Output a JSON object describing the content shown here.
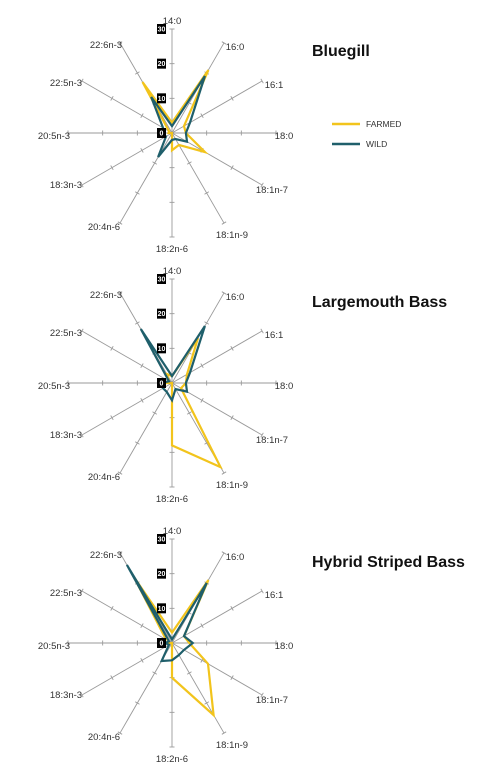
{
  "chart_data": [
    {
      "type": "radar",
      "title": "Bluegill",
      "axes": [
        "14:0",
        "16:0",
        "16:1",
        "18:0",
        "18:1n-7",
        "18:1n-9",
        "18:2n-6",
        "20:4n-6",
        "18:3n-3",
        "20:5n-3",
        "22:5n-3",
        "22:6n-3"
      ],
      "r_ticks": [
        "0",
        "10",
        "20",
        "30"
      ],
      "rlim": [
        0,
        30
      ],
      "series": [
        {
          "name": "FARMED",
          "color": "#f2c41c",
          "values": [
            3,
            21,
            4,
            4,
            11,
            4,
            5,
            0,
            0,
            1,
            1,
            17
          ]
        },
        {
          "name": "WILD",
          "color": "#1f5f6b",
          "values": [
            2,
            19,
            6,
            4,
            5,
            2,
            2,
            8,
            2,
            3,
            3,
            12
          ]
        }
      ]
    },
    {
      "type": "radar",
      "title": "Largemouth Bass",
      "axes": [
        "14:0",
        "16:0",
        "16:1",
        "18:0",
        "18:1n-7",
        "18:1n-9",
        "18:2n-6",
        "20:4n-6",
        "18:3n-3",
        "20:5n-3",
        "22:5n-3",
        "22:6n-3"
      ],
      "r_ticks": [
        "0",
        "10",
        "20",
        "30"
      ],
      "rlim": [
        0,
        30
      ],
      "series": [
        {
          "name": "FARMED",
          "color": "#f2c41c",
          "values": [
            2,
            15,
            5,
            4,
            3,
            28,
            18,
            0,
            0,
            2,
            1,
            3
          ]
        },
        {
          "name": "WILD",
          "color": "#1f5f6b",
          "values": [
            2,
            19,
            6,
            4,
            5,
            2,
            5,
            3,
            3,
            3,
            1,
            18
          ]
        }
      ]
    },
    {
      "type": "radar",
      "title": "Hybrid Striped Bass",
      "axes": [
        "14:0",
        "16:0",
        "16:1",
        "18:0",
        "18:1n-7",
        "18:1n-9",
        "18:2n-6",
        "20:4n-6",
        "18:3n-3",
        "20:5n-3",
        "22:5n-3",
        "22:6n-3"
      ],
      "r_ticks": [
        "0",
        "10",
        "20",
        "30"
      ],
      "rlim": [
        0,
        30
      ],
      "series": [
        {
          "name": "FARMED",
          "color": "#f2c41c",
          "values": [
            3,
            21,
            4,
            5,
            12,
            24,
            10,
            0,
            0,
            4,
            2,
            22
          ]
        },
        {
          "name": "WILD",
          "color": "#1f5f6b",
          "values": [
            1,
            20,
            4,
            6,
            4,
            4,
            5,
            6,
            1,
            2,
            1,
            26
          ]
        }
      ]
    }
  ],
  "legend": {
    "placement": "right of first chart",
    "items": [
      {
        "label": "FARMED",
        "color": "#f2c41c"
      },
      {
        "label": "WILD",
        "color": "#1f5f6b"
      }
    ]
  }
}
